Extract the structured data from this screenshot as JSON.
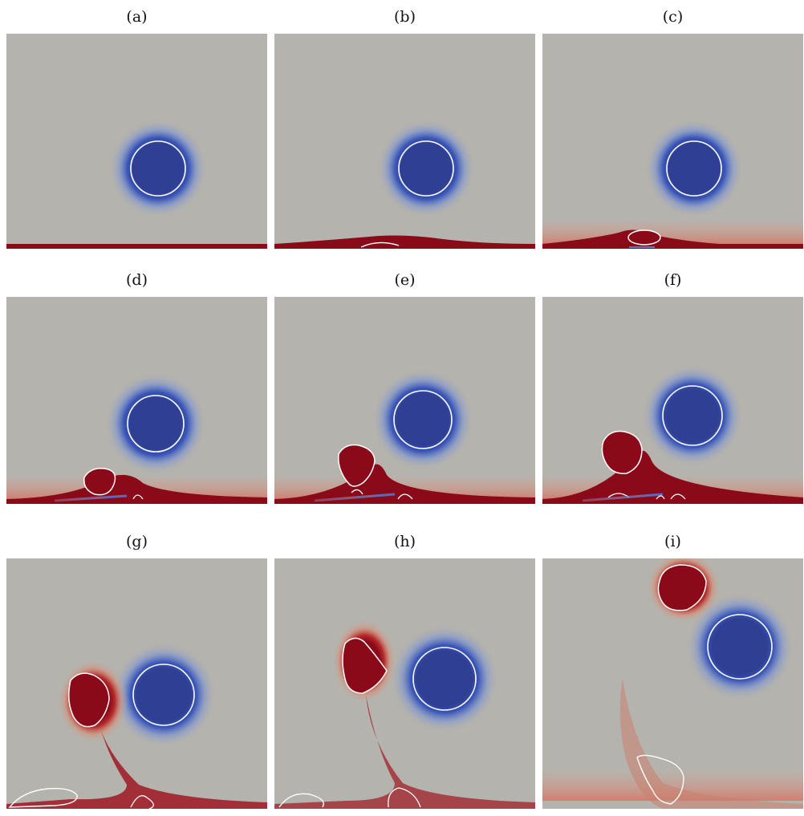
{
  "figure": {
    "panels": [
      {
        "label": "(a)"
      },
      {
        "label": "(b)"
      },
      {
        "label": "(c)"
      },
      {
        "label": "(d)"
      },
      {
        "label": "(e)"
      },
      {
        "label": "(f)"
      },
      {
        "label": "(g)"
      },
      {
        "label": "(h)"
      },
      {
        "label": "(i)"
      }
    ]
  },
  "colors": {
    "background": "#b5b3ad",
    "positive_vorticity": "#8b0a1a",
    "negative_vorticity": "#2f3f93",
    "contour": "#ffffff"
  }
}
